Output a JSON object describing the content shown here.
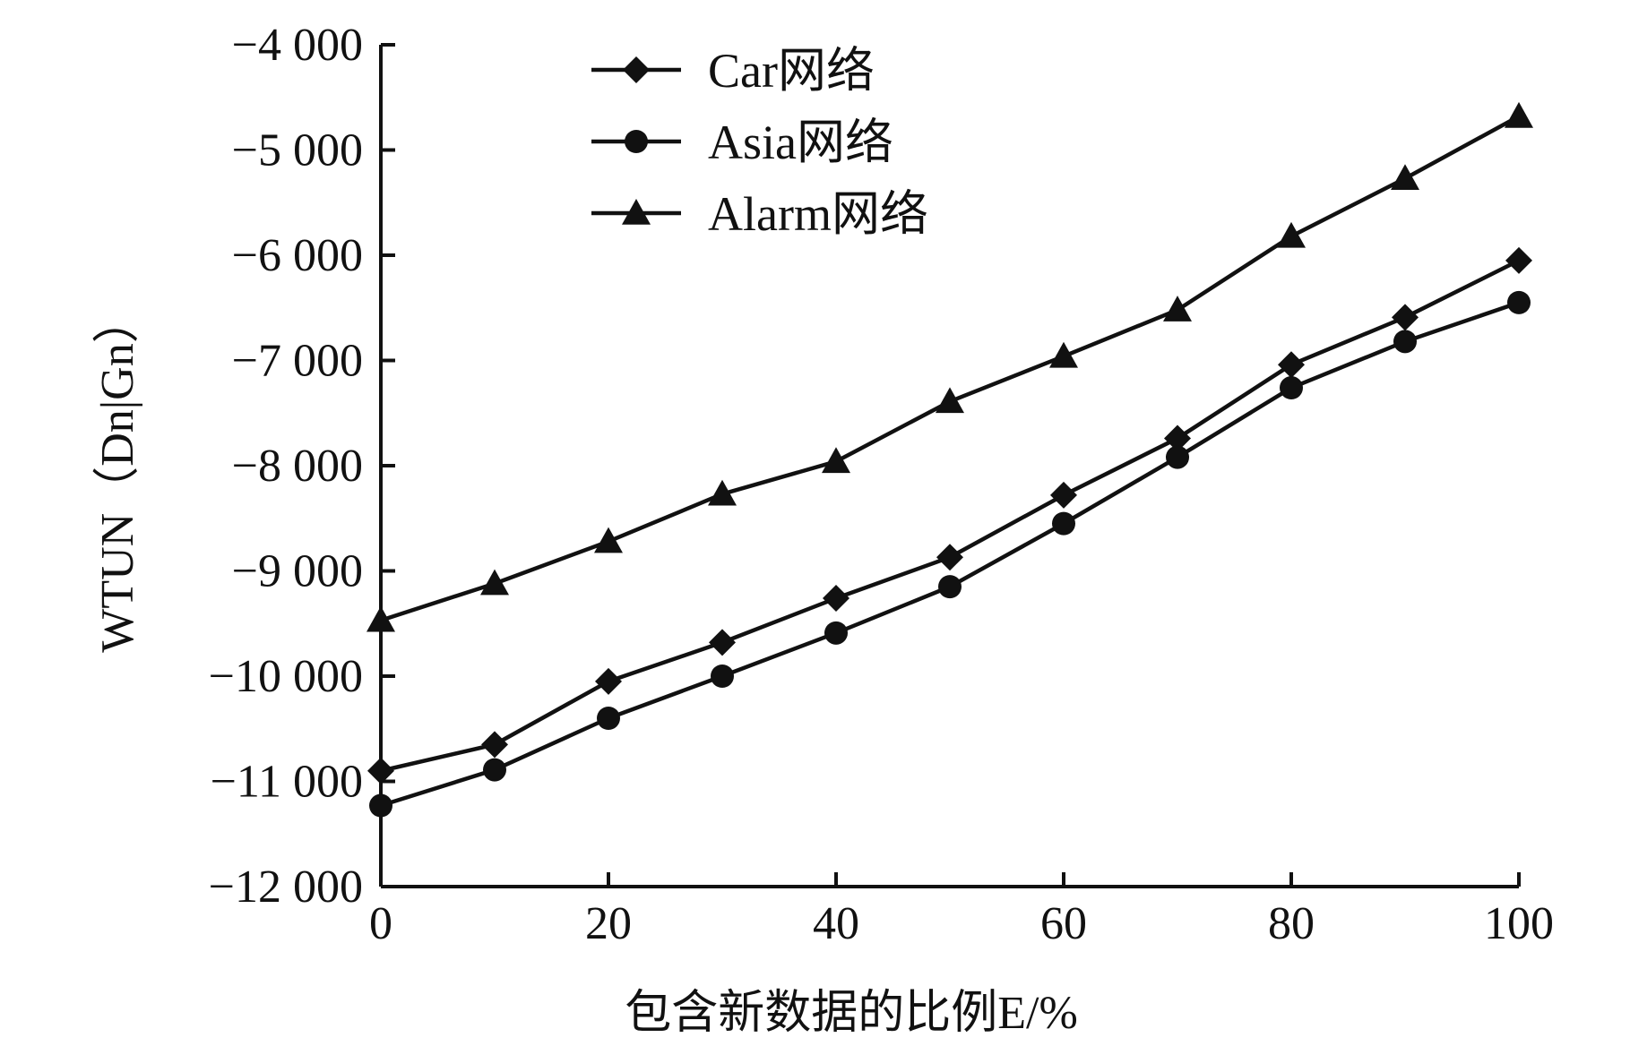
{
  "chart_data": {
    "type": "line",
    "xlabel": "包含新数据的比例E/%",
    "ylabel": "WTUN（Dn|Gn）",
    "xlim": [
      0,
      100
    ],
    "ylim": [
      -12000,
      -4000
    ],
    "x_ticks": [
      0,
      20,
      40,
      60,
      80,
      100
    ],
    "x_tick_labels": [
      "0",
      "20",
      "40",
      "60",
      "80",
      "100"
    ],
    "y_ticks": [
      -4000,
      -5000,
      -6000,
      -7000,
      -8000,
      -9000,
      -10000,
      -11000,
      -12000
    ],
    "y_tick_labels": [
      "−4 000",
      "−5 000",
      "−6 000",
      "−7 000",
      "−8 000",
      "−9 000",
      "−10 000",
      "−11 000",
      "−12 000"
    ],
    "grid": false,
    "legend_position": "top-left",
    "x": [
      0,
      10,
      20,
      30,
      40,
      50,
      60,
      70,
      80,
      90,
      100
    ],
    "series": [
      {
        "name": "Car网络",
        "marker": "diamond",
        "values": [
          -10900,
          -10650,
          -10050,
          -9680,
          -9260,
          -8870,
          -8280,
          -7740,
          -7040,
          -6590,
          -6050
        ]
      },
      {
        "name": "Asia网络",
        "marker": "circle",
        "values": [
          -11230,
          -10890,
          -10400,
          -10000,
          -9590,
          -9150,
          -8550,
          -7920,
          -7260,
          -6820,
          -6450
        ]
      },
      {
        "name": "Alarm网络",
        "marker": "triangle",
        "values": [
          -9470,
          -9120,
          -8720,
          -8270,
          -7960,
          -7390,
          -6960,
          -6520,
          -5820,
          -5270,
          -4680
        ]
      }
    ]
  }
}
